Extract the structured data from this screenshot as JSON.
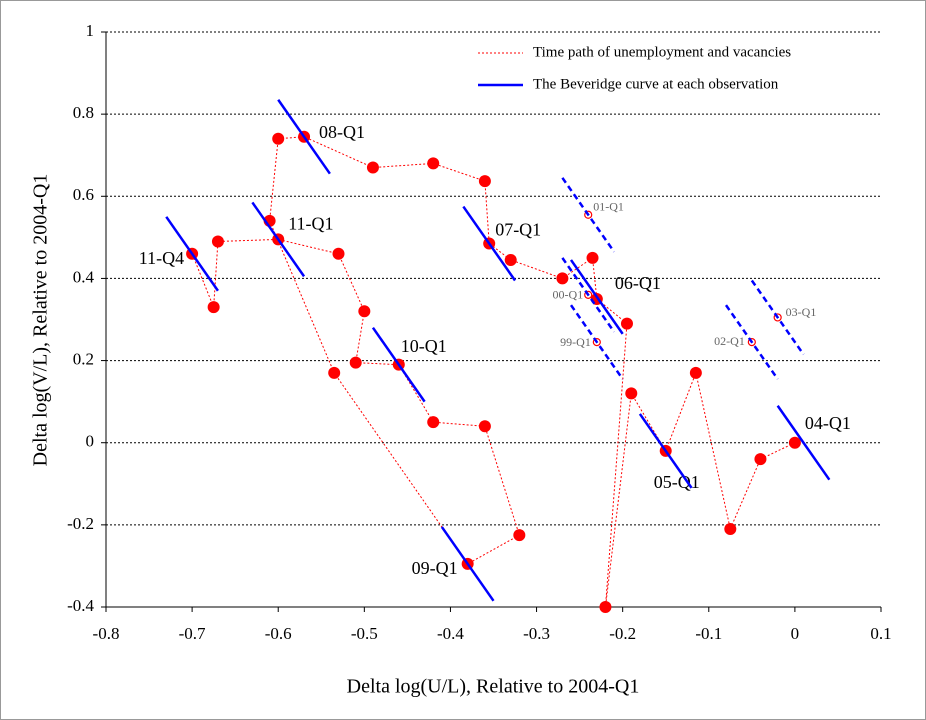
{
  "chart_data": {
    "type": "scatter",
    "x_label": "Delta log(U/L), Relative to 2004-Q1",
    "y_label": "Delta log(V/L), Relative to 2004-Q1",
    "xlim": [
      -0.8,
      0.1
    ],
    "ylim": [
      -0.4,
      1
    ],
    "xticks": [
      -0.8,
      -0.7,
      -0.6,
      -0.5,
      -0.4,
      -0.3,
      -0.2,
      -0.1,
      0,
      0.1
    ],
    "yticks": [
      -0.4,
      -0.2,
      0,
      0.2,
      0.4,
      0.6,
      0.8,
      1
    ],
    "grid": true,
    "legend": "upper right",
    "series": [
      {
        "name": "Time path of unemployment and vacancies",
        "color": "#ff0000",
        "line": "dotted",
        "marker": "filled",
        "x": [
          0,
          -0.04,
          -0.075,
          -0.115,
          -0.15,
          -0.19,
          -0.22,
          -0.195,
          -0.23,
          -0.235,
          -0.27,
          -0.33,
          -0.355,
          -0.36,
          -0.42,
          -0.49,
          -0.57,
          -0.6,
          -0.61,
          -0.535,
          -0.38,
          -0.32,
          -0.36,
          -0.42,
          -0.46,
          -0.51,
          -0.5,
          -0.53,
          -0.6,
          -0.67,
          -0.675,
          -0.7
        ],
        "y": [
          0,
          -0.04,
          -0.21,
          0.17,
          -0.02,
          0.12,
          -0.4,
          0.29,
          0.35,
          0.45,
          0.4,
          0.445,
          0.485,
          0.637,
          0.68,
          0.67,
          0.745,
          0.74,
          0.54,
          0.17,
          -0.295,
          -0.225,
          0.04,
          0.05,
          0.19,
          0.195,
          0.32,
          0.46,
          0.495,
          0.49,
          0.33,
          0.46
        ],
        "point_labels": [
          "04-Q1",
          null,
          null,
          null,
          "05-Q1",
          null,
          null,
          null,
          "06-Q1",
          null,
          null,
          null,
          "07-Q1",
          null,
          null,
          null,
          "08-Q1",
          null,
          null,
          null,
          "09-Q1",
          null,
          null,
          null,
          "10-Q1",
          null,
          null,
          null,
          "11-Q1",
          null,
          null,
          "11-Q4"
        ]
      },
      {
        "color": "#ff0000",
        "marker": "open",
        "x": [
          -0.23,
          -0.24,
          -0.24,
          -0.05,
          -0.02
        ],
        "y": [
          0.245,
          0.36,
          0.555,
          0.245,
          0.305
        ],
        "point_labels": [
          "99-Q1",
          "00-Q1",
          "01-Q1",
          "02-Q1",
          "03-Q1"
        ]
      },
      {
        "name": "The Beveridge curve at each observation",
        "color": "#0000ff",
        "segments": [
          {
            "x": [
              -0.02,
              0.04
            ],
            "y": [
              0.09,
              -0.09
            ]
          },
          {
            "x": [
              -0.18,
              -0.12
            ],
            "y": [
              0.07,
              -0.11
            ]
          },
          {
            "x": [
              -0.26,
              -0.2
            ],
            "y": [
              0.445,
              0.265
            ]
          },
          {
            "x": [
              -0.385,
              -0.325
            ],
            "y": [
              0.575,
              0.395
            ]
          },
          {
            "x": [
              -0.6,
              -0.54
            ],
            "y": [
              0.835,
              0.655
            ]
          },
          {
            "x": [
              -0.41,
              -0.35
            ],
            "y": [
              -0.205,
              -0.385
            ]
          },
          {
            "x": [
              -0.49,
              -0.43
            ],
            "y": [
              0.28,
              0.1
            ]
          },
          {
            "x": [
              -0.63,
              -0.57
            ],
            "y": [
              0.585,
              0.405
            ]
          },
          {
            "x": [
              -0.73,
              -0.67
            ],
            "y": [
              0.55,
              0.37
            ]
          }
        ],
        "dashed_segments": [
          {
            "x": [
              -0.26,
              -0.2
            ],
            "y": [
              0.335,
              0.155
            ]
          },
          {
            "x": [
              -0.27,
              -0.21
            ],
            "y": [
              0.45,
              0.27
            ]
          },
          {
            "x": [
              -0.27,
              -0.21
            ],
            "y": [
              0.645,
              0.465
            ]
          },
          {
            "x": [
              -0.08,
              -0.02
            ],
            "y": [
              0.335,
              0.155
            ]
          },
          {
            "x": [
              -0.05,
              0.01
            ],
            "y": [
              0.395,
              0.215
            ]
          }
        ]
      }
    ]
  }
}
